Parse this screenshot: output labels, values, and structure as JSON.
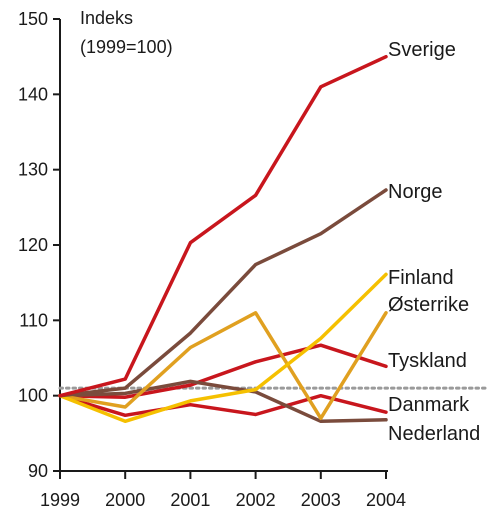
{
  "chart_data": {
    "type": "line",
    "ylabel": "Indeks",
    "ylabel_note": "(1999=100)",
    "x": [
      "1999",
      "2000",
      "2001",
      "2002",
      "2003",
      "2004"
    ],
    "ylim": [
      90,
      150
    ],
    "yticks": [
      "90",
      "100",
      "110",
      "120",
      "130",
      "140",
      "150"
    ],
    "reference_line": 101,
    "grid": false,
    "legend": "labels at line ends (right)",
    "series": [
      {
        "name": "Sverige",
        "color": "#c8161d",
        "values": [
          100,
          102.2,
          120.3,
          126.6,
          141.0,
          145.0
        ]
      },
      {
        "name": "Norge",
        "color": "#7a4b3c",
        "values": [
          100,
          101.0,
          108.3,
          117.4,
          121.5,
          127.3
        ]
      },
      {
        "name": "Finland",
        "color": "#f5c000",
        "values": [
          100,
          96.6,
          99.3,
          100.8,
          107.6,
          116.1
        ]
      },
      {
        "name": "Østerrike",
        "color": "#e0a020",
        "values": [
          100,
          98.5,
          106.4,
          111.0,
          97.0,
          111.0
        ]
      },
      {
        "name": "Tyskland",
        "color": "#c8161d",
        "values": [
          100,
          99.8,
          101.4,
          104.5,
          106.7,
          103.9
        ]
      },
      {
        "name": "Danmark",
        "color": "#c8161d",
        "values": [
          100,
          97.4,
          98.8,
          97.5,
          100.0,
          97.8
        ]
      },
      {
        "name": "Nederland",
        "color": "#7a4b3c",
        "values": [
          100,
          100.3,
          101.9,
          100.5,
          96.6,
          96.8
        ]
      }
    ]
  }
}
